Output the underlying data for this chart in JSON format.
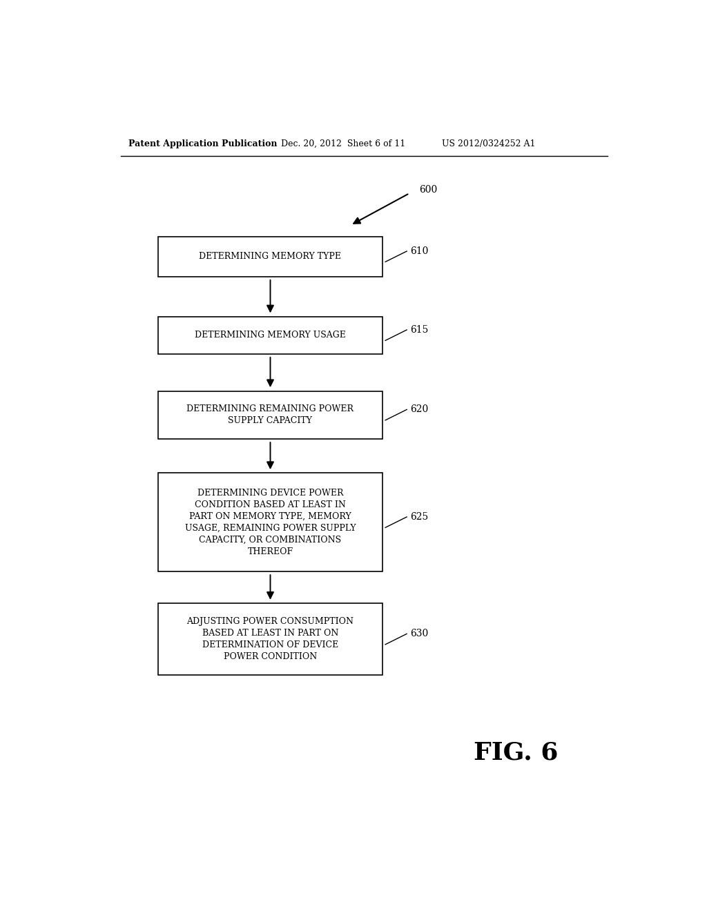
{
  "header_left": "Patent Application Publication",
  "header_mid": "Dec. 20, 2012  Sheet 6 of 11",
  "header_right": "US 2012/0324252 A1",
  "fig_label": "FIG. 6",
  "diagram_label": "600",
  "boxes": [
    {
      "lines": [
        "DETERMINING MEMORY TYPE"
      ],
      "ref": "610"
    },
    {
      "lines": [
        "DETERMINING MEMORY USAGE"
      ],
      "ref": "615"
    },
    {
      "lines": [
        "DETERMINING REMAINING POWER",
        "SUPPLY CAPACITY"
      ],
      "ref": "620"
    },
    {
      "lines": [
        "DETERMINING DEVICE POWER",
        "CONDITION BASED AT LEAST IN",
        "PART ON MEMORY TYPE, MEMORY",
        "USAGE, REMAINING POWER SUPPLY",
        "CAPACITY, OR COMBINATIONS",
        "THEREOF"
      ],
      "ref": "625"
    },
    {
      "lines": [
        "ADJUSTING POWER CONSUMPTION",
        "BASED AT LEAST IN PART ON",
        "DETERMINATION OF DEVICE",
        "POWER CONDITION"
      ],
      "ref": "630"
    }
  ],
  "background_color": "#ffffff",
  "box_edge_color": "#000000",
  "text_color": "#000000",
  "box_fill_color": "#ffffff",
  "arrow_color": "#000000",
  "font_family": "DejaVu Serif"
}
